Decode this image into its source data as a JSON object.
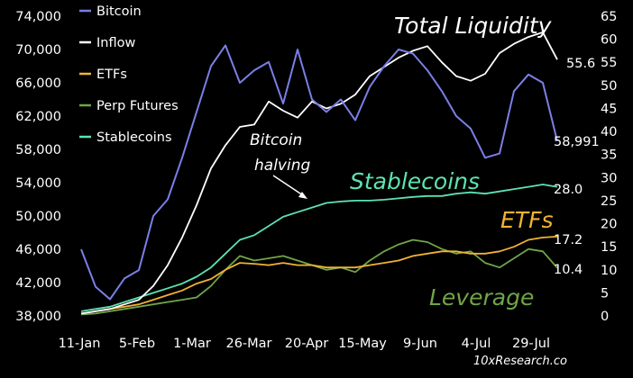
{
  "chart_data": {
    "type": "line",
    "x": [
      "11-Jan",
      "18-Jan",
      "25-Jan",
      "1-Feb",
      "5-Feb",
      "12-Feb",
      "19-Feb",
      "26-Feb",
      "1-Mar",
      "8-Mar",
      "15-Mar",
      "22-Mar",
      "26-Mar",
      "2-Apr",
      "9-Apr",
      "16-Apr",
      "20-Apr",
      "27-Apr",
      "4-May",
      "11-May",
      "15-May",
      "22-May",
      "29-May",
      "5-Jun",
      "9-Jun",
      "16-Jun",
      "23-Jun",
      "30-Jun",
      "4-Jul",
      "11-Jul",
      "18-Jul",
      "25-Jul",
      "29-Jul",
      "5-Aug"
    ],
    "x_tick_labels": [
      "11-Jan",
      "5-Feb",
      "1-Mar",
      "26-Mar",
      "20-Apr",
      "15-May",
      "9-Jun",
      "4-Jul",
      "29-Jul"
    ],
    "left_axis": {
      "ticks": [
        "38,000",
        "42,000",
        "46,000",
        "50,000",
        "54,000",
        "58,000",
        "62,000",
        "66,000",
        "70,000",
        "74,000"
      ],
      "ylim": [
        38000,
        74000
      ]
    },
    "right_axis": {
      "ticks": [
        "0",
        "5",
        "10",
        "15",
        "20",
        "25",
        "30",
        "35",
        "40",
        "45",
        "50",
        "55",
        "60",
        "65"
      ],
      "ylim": [
        0,
        65
      ]
    },
    "legend_placement": "top-left",
    "series": [
      {
        "name": "Bitcoin",
        "color": "#7b7fe6",
        "axis": "left",
        "values": [
          46000,
          41500,
          40000,
          42500,
          43500,
          50000,
          52000,
          57000,
          62500,
          68000,
          70500,
          66000,
          67500,
          68500,
          63500,
          70000,
          64000,
          62500,
          64000,
          61500,
          65500,
          68000,
          70000,
          69500,
          67500,
          65000,
          62000,
          60500,
          57000,
          57500,
          65000,
          67000,
          66000,
          58991
        ]
      },
      {
        "name": "Inflow",
        "color": "#ffffff",
        "axis": "right",
        "values": [
          0.5,
          1.0,
          1.5,
          2.5,
          3.5,
          6.5,
          11.0,
          17.0,
          24.0,
          32.0,
          37.0,
          41.0,
          41.5,
          46.5,
          44.5,
          43.0,
          46.5,
          45.0,
          46.0,
          48.0,
          52.0,
          54.0,
          56.0,
          57.5,
          58.5,
          55.0,
          52.0,
          51.0,
          52.5,
          57.0,
          59.0,
          60.5,
          61.5,
          55.6
        ]
      },
      {
        "name": "ETFs",
        "color": "#f2b233",
        "axis": "right",
        "values": [
          0.5,
          1.0,
          1.5,
          2.0,
          2.5,
          3.5,
          4.5,
          5.5,
          7.0,
          8.0,
          10.0,
          11.5,
          11.3,
          11.0,
          11.5,
          11.0,
          11.0,
          10.5,
          10.5,
          10.5,
          11.0,
          11.5,
          12.0,
          13.0,
          13.5,
          14.0,
          14.0,
          13.5,
          13.5,
          14.0,
          15.0,
          16.5,
          17.0,
          17.2
        ]
      },
      {
        "name": "Perp Futures",
        "color": "#71a548",
        "axis": "right",
        "values": [
          0.3,
          0.5,
          1.0,
          1.5,
          2.0,
          2.5,
          3.0,
          3.5,
          4.0,
          6.5,
          10.0,
          13.0,
          12.0,
          12.5,
          13.0,
          12.0,
          11.0,
          10.0,
          10.5,
          9.5,
          12.0,
          14.0,
          15.5,
          16.5,
          16.0,
          14.5,
          13.5,
          14.0,
          11.5,
          10.5,
          12.5,
          14.5,
          14.0,
          10.4
        ]
      },
      {
        "name": "Stablecoins",
        "color": "#5de3b2",
        "axis": "right",
        "values": [
          1.0,
          1.5,
          2.0,
          3.0,
          4.0,
          5.0,
          6.0,
          7.0,
          8.5,
          10.5,
          13.5,
          16.5,
          17.5,
          19.5,
          21.5,
          22.5,
          23.5,
          24.5,
          24.8,
          25.0,
          25.0,
          25.2,
          25.5,
          25.8,
          26.0,
          26.0,
          26.5,
          26.8,
          26.5,
          27.0,
          27.5,
          28.0,
          28.5,
          28.0
        ]
      }
    ],
    "end_labels": [
      {
        "series": "Bitcoin",
        "text": "58,991"
      },
      {
        "series": "Inflow",
        "text": "55.6"
      },
      {
        "series": "Stablecoins",
        "text": "28.0"
      },
      {
        "series": "ETFs",
        "text": "17.2"
      },
      {
        "series": "Perp Futures",
        "text": "10.4"
      }
    ],
    "annotations": {
      "total_liquidity": "Total Liquidity",
      "stablecoins": "Stablecoins",
      "etfs": "ETFs",
      "leverage": "Leverage",
      "halving_line1": "Bitcoin",
      "halving_line2": "halving"
    },
    "source": "10xResearch.co"
  }
}
